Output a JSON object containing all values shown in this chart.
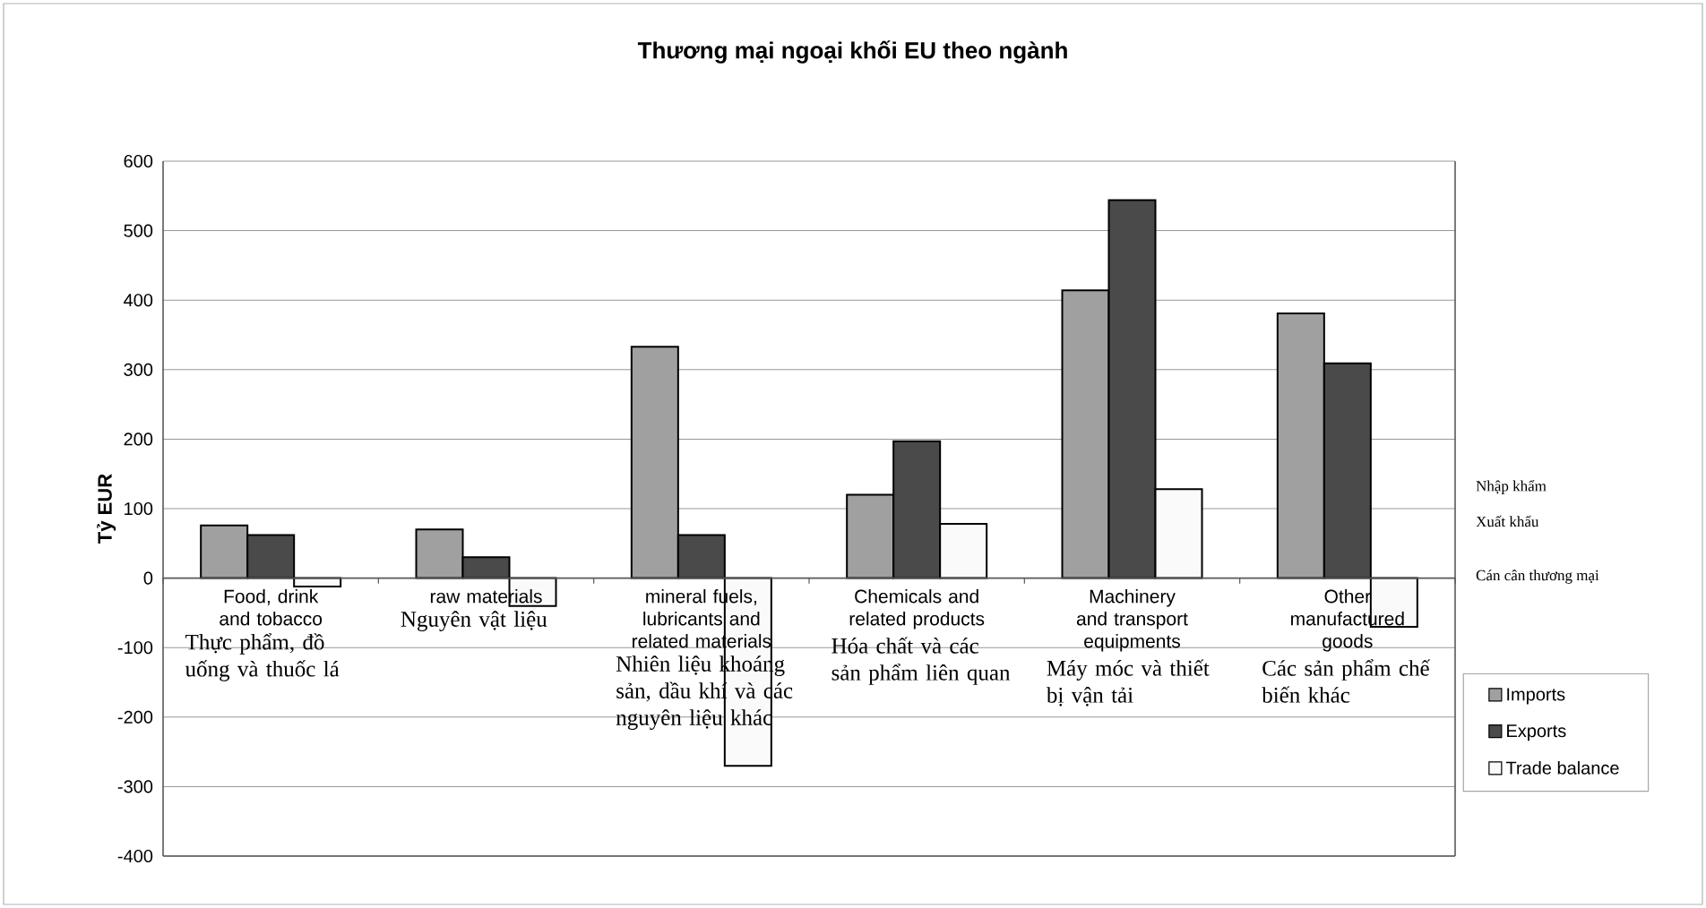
{
  "chart_data": {
    "type": "bar",
    "title": "Thương mại ngoại khối EU theo ngành",
    "ylabel": "Tỷ EUR",
    "categories": [
      "Food, drink and tobacco",
      "raw materials",
      "mineral fuels, lubricants and related materials",
      "Chemicals and related products",
      "Machinery and transport equipments",
      "Other manufactured goods"
    ],
    "series": [
      {
        "name": "Imports",
        "color": "#a0a0a0",
        "values": [
          76,
          70,
          333,
          120,
          414,
          381
        ]
      },
      {
        "name": "Exports",
        "color": "#4a4a4a",
        "values": [
          62,
          30,
          62,
          197,
          544,
          309
        ]
      },
      {
        "name": "Trade balance",
        "color": "#fafafa",
        "values": [
          -12,
          -40,
          -270,
          78,
          128,
          -70
        ]
      }
    ],
    "ylim": [
      -400,
      600
    ],
    "yticks": [
      -400,
      -300,
      -200,
      -100,
      0,
      100,
      200,
      300,
      400,
      500,
      600
    ],
    "grid": "y",
    "legend": "right",
    "annotations": [
      "Thực phẩm, đồ uống và thuốc lá",
      "Nguyên vật liệu",
      "Nhiên liệu khoáng sản, dầu khí và các nguyên liệu khác",
      "Hóa chất và các sản phẩm liên quan",
      "Máy móc và thiết bị vận tải",
      "Các sản phẩm chế biến khác",
      "Nhập khẩm",
      "Xuất khẩu",
      "Cán cân thương mại"
    ]
  }
}
